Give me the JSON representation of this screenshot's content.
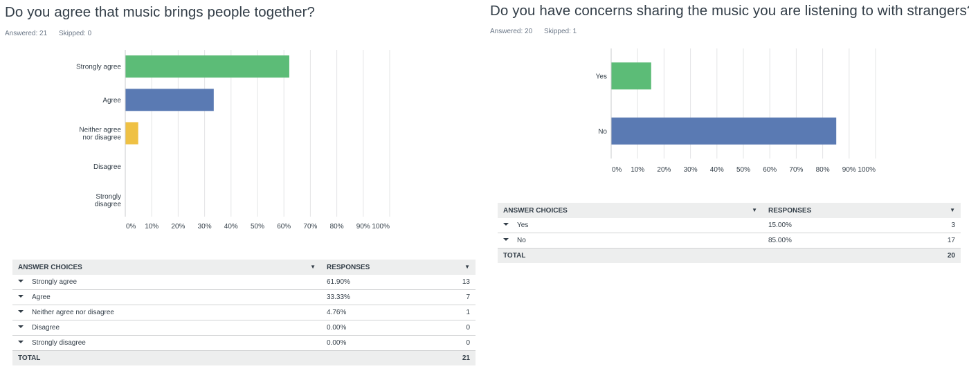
{
  "panels": [
    {
      "title": "Do you agree that music brings people together?",
      "answered_label": "Answered: 21",
      "skipped_label": "Skipped: 0",
      "table": {
        "col_choices": "ANSWER CHOICES",
        "col_responses": "RESPONSES",
        "rows": [
          {
            "choice": "Strongly agree",
            "percent": "61.90%",
            "count": "13"
          },
          {
            "choice": "Agree",
            "percent": "33.33%",
            "count": "7"
          },
          {
            "choice": "Neither agree nor disagree",
            "percent": "4.76%",
            "count": "1"
          },
          {
            "choice": "Disagree",
            "percent": "0.00%",
            "count": "0"
          },
          {
            "choice": "Strongly disagree",
            "percent": "0.00%",
            "count": "0"
          }
        ],
        "total_label": "TOTAL",
        "total_value": "21"
      }
    },
    {
      "title": "Do you have concerns sharing the music you are listening to with strangers?",
      "answered_label": "Answered: 20",
      "skipped_label": "Skipped: 1",
      "table": {
        "col_choices": "ANSWER CHOICES",
        "col_responses": "RESPONSES",
        "rows": [
          {
            "choice": "Yes",
            "percent": "15.00%",
            "count": "3"
          },
          {
            "choice": "No",
            "percent": "85.00%",
            "count": "17"
          }
        ],
        "total_label": "TOTAL",
        "total_value": "20"
      }
    }
  ],
  "chart_data": [
    {
      "type": "bar",
      "orientation": "horizontal",
      "categories": [
        [
          "Strongly agree"
        ],
        [
          "Agree"
        ],
        [
          "Neither agree",
          "nor disagree"
        ],
        [
          "Disagree"
        ],
        [
          "Strongly",
          "disagree"
        ]
      ],
      "values": [
        61.9,
        33.33,
        4.76,
        0,
        0
      ],
      "colors": [
        "#5cbc77",
        "#5a7ab3",
        "#efc144",
        "#5a7ab3",
        "#5a7ab3"
      ],
      "x_ticks": [
        "0%",
        "10%",
        "20%",
        "30%",
        "40%",
        "50%",
        "60%",
        "70%",
        "80%",
        "90%",
        "100%"
      ],
      "xlim": [
        0,
        100
      ],
      "grid": true
    },
    {
      "type": "bar",
      "orientation": "horizontal",
      "categories": [
        [
          "Yes"
        ],
        [
          "No"
        ]
      ],
      "values": [
        15,
        85
      ],
      "colors": [
        "#5cbc77",
        "#5a7ab3"
      ],
      "x_ticks": [
        "0%",
        "10%",
        "20%",
        "30%",
        "40%",
        "50%",
        "60%",
        "70%",
        "80%",
        "90%",
        "100%"
      ],
      "xlim": [
        0,
        100
      ],
      "grid": true
    }
  ]
}
